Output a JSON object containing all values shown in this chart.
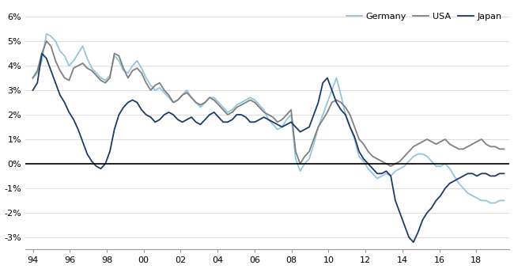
{
  "ylim": [
    -3.5,
    6.5
  ],
  "yticks": [
    -3,
    -2,
    -1,
    0,
    1,
    2,
    3,
    4,
    5,
    6
  ],
  "ytick_labels": [
    "-3%",
    "-2%",
    "-1%",
    "0%",
    "1%",
    "2%",
    "3%",
    "4%",
    "5%",
    "6%"
  ],
  "xtick_labels": [
    "94",
    "96",
    "98",
    "00",
    "02",
    "04",
    "06",
    "08",
    "10",
    "12",
    "14",
    "16",
    "18"
  ],
  "xtick_positions": [
    1994,
    1996,
    1998,
    2000,
    2002,
    2004,
    2006,
    2008,
    2010,
    2012,
    2014,
    2016,
    2018
  ],
  "xlim": [
    1993.6,
    2019.8
  ],
  "colors": {
    "USA": "#7f7f7f",
    "Germany": "#92c5de",
    "Japan": "#1a3a6b"
  },
  "background_color": "#ffffff",
  "usa": [
    3.5,
    3.8,
    4.5,
    5.0,
    4.8,
    4.2,
    3.8,
    3.5,
    3.4,
    3.9,
    4.0,
    4.1,
    3.9,
    3.8,
    3.6,
    3.4,
    3.3,
    3.5,
    4.5,
    4.4,
    3.9,
    3.5,
    3.8,
    3.9,
    3.7,
    3.3,
    3.0,
    3.2,
    3.3,
    3.0,
    2.8,
    2.5,
    2.6,
    2.8,
    2.9,
    2.7,
    2.5,
    2.4,
    2.5,
    2.7,
    2.6,
    2.4,
    2.2,
    2.0,
    2.1,
    2.3,
    2.4,
    2.5,
    2.6,
    2.5,
    2.3,
    2.1,
    2.0,
    1.9,
    1.7,
    1.8,
    2.0,
    2.2,
    0.5,
    0.0,
    0.3,
    0.5,
    1.0,
    1.5,
    1.8,
    2.1,
    2.5,
    2.6,
    2.5,
    2.3,
    2.0,
    1.5,
    1.0,
    0.8,
    0.5,
    0.3,
    0.2,
    0.1,
    0.0,
    -0.1,
    0.0,
    0.1,
    0.3,
    0.5,
    0.7,
    0.8,
    0.9,
    1.0,
    0.9,
    0.8,
    0.9,
    1.0,
    0.8,
    0.7,
    0.6,
    0.6,
    0.7,
    0.8,
    0.9,
    1.0,
    0.8,
    0.7,
    0.7,
    0.6,
    0.6
  ],
  "germany": [
    3.5,
    3.7,
    4.2,
    5.3,
    5.2,
    5.0,
    4.6,
    4.4,
    4.0,
    4.2,
    4.5,
    4.8,
    4.3,
    3.9,
    3.7,
    3.5,
    3.4,
    3.6,
    4.4,
    4.2,
    3.8,
    3.7,
    4.0,
    4.2,
    3.9,
    3.5,
    3.2,
    3.0,
    3.1,
    2.9,
    2.7,
    2.5,
    2.6,
    2.8,
    3.0,
    2.7,
    2.5,
    2.3,
    2.5,
    2.7,
    2.7,
    2.5,
    2.3,
    2.1,
    2.2,
    2.4,
    2.5,
    2.6,
    2.7,
    2.6,
    2.4,
    2.2,
    1.8,
    1.6,
    1.4,
    1.5,
    1.8,
    2.0,
    0.2,
    -0.3,
    0.0,
    0.2,
    0.8,
    1.5,
    2.0,
    2.5,
    3.0,
    3.5,
    2.8,
    2.0,
    1.5,
    1.0,
    0.3,
    0.1,
    -0.2,
    -0.4,
    -0.6,
    -0.5,
    -0.4,
    -0.5,
    -0.3,
    -0.2,
    -0.1,
    0.1,
    0.3,
    0.4,
    0.4,
    0.3,
    0.1,
    -0.1,
    -0.1,
    0.0,
    -0.2,
    -0.5,
    -0.8,
    -1.0,
    -1.2,
    -1.3,
    -1.4,
    -1.5,
    -1.5,
    -1.6,
    -1.6,
    -1.5,
    -1.5
  ],
  "japan": [
    3.0,
    3.3,
    4.5,
    4.3,
    3.8,
    3.3,
    2.8,
    2.5,
    2.1,
    1.8,
    1.4,
    0.9,
    0.4,
    0.1,
    -0.1,
    -0.2,
    0.0,
    0.5,
    1.4,
    2.0,
    2.3,
    2.5,
    2.6,
    2.5,
    2.2,
    2.0,
    1.9,
    1.7,
    1.8,
    2.0,
    2.1,
    2.0,
    1.8,
    1.7,
    1.8,
    1.9,
    1.7,
    1.6,
    1.8,
    2.0,
    2.1,
    1.9,
    1.7,
    1.7,
    1.8,
    2.0,
    2.0,
    1.9,
    1.7,
    1.7,
    1.8,
    1.9,
    1.8,
    1.7,
    1.6,
    1.5,
    1.6,
    1.7,
    1.5,
    1.3,
    1.4,
    1.5,
    2.0,
    2.5,
    3.3,
    3.5,
    3.0,
    2.5,
    2.2,
    2.0,
    1.5,
    1.1,
    0.5,
    0.2,
    0.0,
    -0.2,
    -0.4,
    -0.4,
    -0.3,
    -0.5,
    -1.5,
    -2.0,
    -2.5,
    -3.0,
    -3.2,
    -2.8,
    -2.3,
    -2.0,
    -1.8,
    -1.5,
    -1.3,
    -1.0,
    -0.8,
    -0.7,
    -0.6,
    -0.5,
    -0.4,
    -0.4,
    -0.5,
    -0.4,
    -0.4,
    -0.5,
    -0.5,
    -0.4,
    -0.4
  ]
}
